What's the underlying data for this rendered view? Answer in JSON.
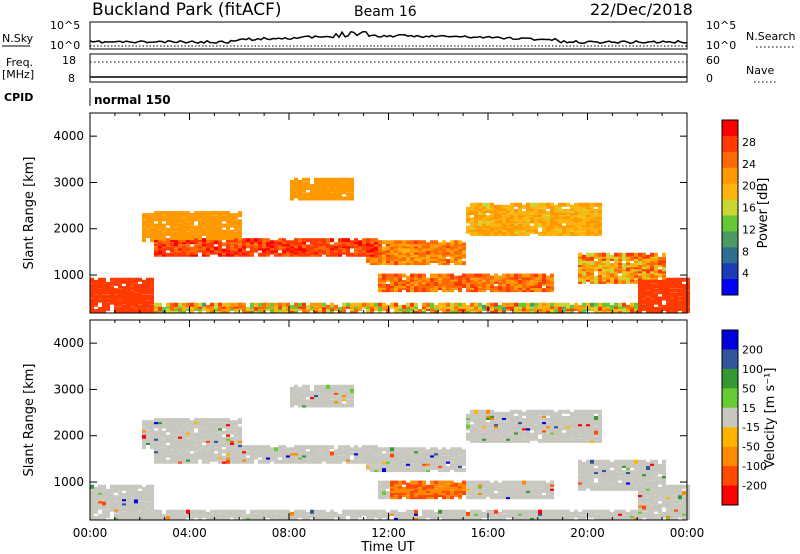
{
  "header": {
    "title": "Buckland Park (fitACF)",
    "beam": "Beam 16",
    "date": "22/Dec/2018"
  },
  "top_strips": {
    "nsky_label": "N.Sky",
    "nsky_ticks": [
      "10^5",
      "10^0"
    ],
    "nsearch_label": "N.Search",
    "nsearch_ticks": [
      "10^5",
      "10^0"
    ],
    "freq_label": "Freq.",
    "freq_unit": "[MHz]",
    "freq_ticks": [
      "18",
      "8"
    ],
    "nave_label": "Nave",
    "nave_ticks": [
      "60",
      "0"
    ],
    "cpid_label": "CPID",
    "cpid_value": "normal 150"
  },
  "colors": {
    "power": [
      "#0000ff",
      "#1a3cb4",
      "#2e6e8e",
      "#4d9966",
      "#66c833",
      "#ccd633",
      "#ffb30d",
      "#ff9900",
      "#ff6a00",
      "#ff3a00",
      "#ff0000"
    ],
    "velocity": [
      "#ff0000",
      "#ff4a00",
      "#ff8a00",
      "#ffb400",
      "#c8c8c0",
      "#66cc33",
      "#339933",
      "#335599",
      "#0000dd"
    ],
    "frame": "#000000"
  },
  "chart_data": [
    {
      "type": "heatmap",
      "panel": "power",
      "ylabel": "Slant Range [km]",
      "xlabel": "",
      "x_ticks": [
        "00:00",
        "04:00",
        "08:00",
        "12:00",
        "16:00",
        "20:00",
        "00:00"
      ],
      "y_ticks": [
        "1000",
        "2000",
        "3000",
        "4000"
      ],
      "y_range": [
        180,
        4500
      ],
      "colorbar_label": "Power [dB]",
      "colorbar_ticks": [
        "4",
        "8",
        "12",
        "16",
        "20",
        "24",
        "28"
      ]
    },
    {
      "type": "heatmap",
      "panel": "velocity",
      "ylabel": "Slant Range [km]",
      "xlabel": "Time UT",
      "x_ticks": [
        "00:00",
        "04:00",
        "08:00",
        "12:00",
        "16:00",
        "20:00",
        "00:00"
      ],
      "y_ticks": [
        "1000",
        "2000",
        "3000",
        "4000"
      ],
      "y_range": [
        180,
        4500
      ],
      "colorbar_label": "Velocity [m s⁻¹]",
      "colorbar_ticks": [
        "200",
        "100",
        "50",
        "15",
        "-15",
        "-50",
        "-100",
        "-200"
      ]
    }
  ]
}
